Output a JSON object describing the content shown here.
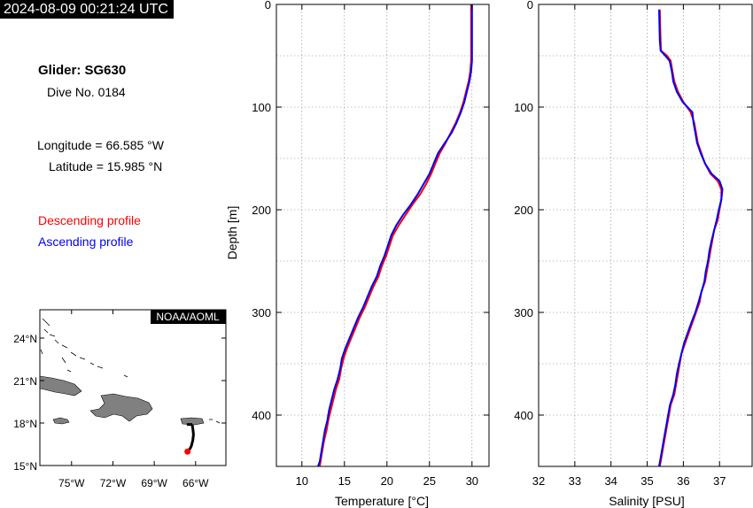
{
  "timestamp": "2024-08-09 00:21:24 UTC",
  "glider": {
    "name": "Glider: SG630",
    "dive": "Dive No. 0184"
  },
  "position": {
    "longitude": "Longitude = 66.585 °W",
    "latitude": "Latitude = 15.985 °N"
  },
  "legend": {
    "descending": "Descending profile",
    "ascending": "Ascending profile"
  },
  "colors": {
    "descending": "#ff0000",
    "ascending": "#0000ff",
    "land": "#808080",
    "track": "#000000",
    "grid": "#888888"
  },
  "map": {
    "credit": "NOAA/AOML",
    "lat_ticks": [
      {
        "v": 24,
        "label": "24°N"
      },
      {
        "v": 21,
        "label": "21°N"
      },
      {
        "v": 18,
        "label": "18°N"
      },
      {
        "v": 15,
        "label": "15°N"
      }
    ],
    "lon_ticks": [
      {
        "v": -75,
        "label": "75°W"
      },
      {
        "v": -72,
        "label": "72°W"
      },
      {
        "v": -69,
        "label": "69°W"
      },
      {
        "v": -66,
        "label": "66°W"
      }
    ],
    "lon_range": [
      -77.3,
      -63.8
    ],
    "lat_range": [
      15.0,
      26.0
    ],
    "track": [
      [
        -66.25,
        17.9
      ],
      [
        -66.2,
        17.6
      ],
      [
        -66.15,
        17.2
      ],
      [
        -66.2,
        16.8
      ],
      [
        -66.3,
        16.4
      ],
      [
        -66.4,
        16.2
      ],
      [
        -66.585,
        15.985
      ]
    ],
    "glider_position": [
      -66.585,
      15.985
    ]
  },
  "chart_data": [
    {
      "type": "line",
      "xlabel": "Temperature [°C]",
      "ylabel": "Depth [m]",
      "xlim": [
        7,
        32
      ],
      "ylim": [
        450,
        0
      ],
      "x_ticks": [
        10,
        15,
        20,
        25,
        30
      ],
      "y_ticks": [
        0,
        100,
        200,
        300,
        400
      ],
      "grid": true,
      "series": [
        {
          "role": "descending",
          "points": [
            [
              29.9,
              0
            ],
            [
              29.9,
              20
            ],
            [
              29.9,
              40
            ],
            [
              29.9,
              55
            ],
            [
              29.8,
              65
            ],
            [
              29.6,
              75
            ],
            [
              29.3,
              85
            ],
            [
              29.0,
              95
            ],
            [
              28.6,
              105
            ],
            [
              28.1,
              115
            ],
            [
              27.5,
              125
            ],
            [
              26.9,
              135
            ],
            [
              26.2,
              145
            ],
            [
              25.7,
              155
            ],
            [
              25.2,
              165
            ],
            [
              24.6,
              175
            ],
            [
              23.9,
              185
            ],
            [
              23.0,
              195
            ],
            [
              22.2,
              205
            ],
            [
              21.4,
              215
            ],
            [
              20.7,
              225
            ],
            [
              20.3,
              235
            ],
            [
              19.9,
              245
            ],
            [
              19.4,
              255
            ],
            [
              19.0,
              265
            ],
            [
              18.4,
              275
            ],
            [
              17.9,
              285
            ],
            [
              17.4,
              295
            ],
            [
              16.8,
              305
            ],
            [
              16.3,
              315
            ],
            [
              15.8,
              325
            ],
            [
              15.3,
              335
            ],
            [
              14.9,
              345
            ],
            [
              14.6,
              355
            ],
            [
              14.4,
              365
            ],
            [
              14.0,
              375
            ],
            [
              13.7,
              385
            ],
            [
              13.4,
              395
            ],
            [
              13.1,
              405
            ],
            [
              12.9,
              415
            ],
            [
              12.6,
              425
            ],
            [
              12.4,
              435
            ],
            [
              12.2,
              445
            ],
            [
              12.1,
              450
            ]
          ]
        },
        {
          "role": "ascending",
          "points": [
            [
              30.0,
              0
            ],
            [
              30.0,
              20
            ],
            [
              30.0,
              40
            ],
            [
              30.0,
              55
            ],
            [
              29.9,
              65
            ],
            [
              29.7,
              75
            ],
            [
              29.4,
              85
            ],
            [
              29.1,
              95
            ],
            [
              28.7,
              105
            ],
            [
              28.2,
              115
            ],
            [
              27.6,
              125
            ],
            [
              26.8,
              135
            ],
            [
              26.0,
              145
            ],
            [
              25.5,
              155
            ],
            [
              25.0,
              165
            ],
            [
              24.3,
              175
            ],
            [
              23.6,
              185
            ],
            [
              22.8,
              195
            ],
            [
              21.9,
              205
            ],
            [
              21.1,
              215
            ],
            [
              20.5,
              225
            ],
            [
              20.1,
              235
            ],
            [
              19.7,
              245
            ],
            [
              19.2,
              255
            ],
            [
              18.8,
              265
            ],
            [
              18.2,
              275
            ],
            [
              17.7,
              285
            ],
            [
              17.2,
              295
            ],
            [
              16.6,
              305
            ],
            [
              16.1,
              315
            ],
            [
              15.6,
              325
            ],
            [
              15.1,
              335
            ],
            [
              14.7,
              345
            ],
            [
              14.5,
              355
            ],
            [
              14.2,
              365
            ],
            [
              13.8,
              375
            ],
            [
              13.5,
              385
            ],
            [
              13.2,
              395
            ],
            [
              13.0,
              405
            ],
            [
              12.7,
              415
            ],
            [
              12.5,
              425
            ],
            [
              12.3,
              435
            ],
            [
              12.1,
              445
            ],
            [
              11.9,
              450
            ]
          ]
        }
      ]
    },
    {
      "type": "line",
      "xlabel": "Salinity [PSU]",
      "ylabel": "",
      "xlim": [
        32,
        37.9
      ],
      "ylim": [
        450,
        0
      ],
      "x_ticks": [
        32,
        33,
        34,
        35,
        36,
        37
      ],
      "y_ticks": [
        0,
        100,
        200,
        300,
        400
      ],
      "grid": true,
      "series": [
        {
          "role": "descending",
          "points": [
            [
              35.35,
              5
            ],
            [
              35.36,
              20
            ],
            [
              35.37,
              35
            ],
            [
              35.38,
              45
            ],
            [
              35.55,
              50
            ],
            [
              35.65,
              55
            ],
            [
              35.7,
              65
            ],
            [
              35.75,
              75
            ],
            [
              35.85,
              85
            ],
            [
              36.0,
              95
            ],
            [
              36.2,
              105
            ],
            [
              36.3,
              115
            ],
            [
              36.35,
              125
            ],
            [
              36.4,
              135
            ],
            [
              36.5,
              145
            ],
            [
              36.6,
              155
            ],
            [
              36.75,
              165
            ],
            [
              36.95,
              172
            ],
            [
              37.05,
              180
            ],
            [
              37.05,
              190
            ],
            [
              37.0,
              200
            ],
            [
              36.95,
              210
            ],
            [
              36.85,
              220
            ],
            [
              36.8,
              230
            ],
            [
              36.75,
              240
            ],
            [
              36.7,
              250
            ],
            [
              36.65,
              260
            ],
            [
              36.6,
              270
            ],
            [
              36.5,
              280
            ],
            [
              36.45,
              290
            ],
            [
              36.35,
              300
            ],
            [
              36.25,
              310
            ],
            [
              36.15,
              320
            ],
            [
              36.05,
              330
            ],
            [
              35.95,
              340
            ],
            [
              35.9,
              350
            ],
            [
              35.85,
              360
            ],
            [
              35.8,
              370
            ],
            [
              35.75,
              380
            ],
            [
              35.65,
              390
            ],
            [
              35.6,
              400
            ],
            [
              35.55,
              410
            ],
            [
              35.5,
              420
            ],
            [
              35.45,
              430
            ],
            [
              35.4,
              440
            ],
            [
              35.35,
              450
            ]
          ]
        },
        {
          "role": "ascending",
          "points": [
            [
              35.33,
              5
            ],
            [
              35.34,
              20
            ],
            [
              35.35,
              35
            ],
            [
              35.37,
              45
            ],
            [
              35.5,
              50
            ],
            [
              35.62,
              55
            ],
            [
              35.68,
              65
            ],
            [
              35.72,
              75
            ],
            [
              35.82,
              85
            ],
            [
              35.98,
              95
            ],
            [
              36.25,
              105
            ],
            [
              36.28,
              115
            ],
            [
              36.33,
              125
            ],
            [
              36.38,
              135
            ],
            [
              36.48,
              145
            ],
            [
              36.6,
              155
            ],
            [
              36.78,
              165
            ],
            [
              37.0,
              172
            ],
            [
              37.08,
              180
            ],
            [
              37.05,
              190
            ],
            [
              36.98,
              200
            ],
            [
              36.92,
              210
            ],
            [
              36.85,
              220
            ],
            [
              36.78,
              230
            ],
            [
              36.72,
              240
            ],
            [
              36.68,
              250
            ],
            [
              36.62,
              260
            ],
            [
              36.58,
              270
            ],
            [
              36.5,
              280
            ],
            [
              36.42,
              290
            ],
            [
              36.33,
              300
            ],
            [
              36.22,
              310
            ],
            [
              36.12,
              320
            ],
            [
              36.02,
              330
            ],
            [
              35.95,
              340
            ],
            [
              35.88,
              350
            ],
            [
              35.82,
              360
            ],
            [
              35.78,
              370
            ],
            [
              35.72,
              380
            ],
            [
              35.63,
              390
            ],
            [
              35.58,
              400
            ],
            [
              35.53,
              410
            ],
            [
              35.48,
              420
            ],
            [
              35.43,
              430
            ],
            [
              35.38,
              440
            ],
            [
              35.33,
              450
            ]
          ]
        }
      ]
    }
  ]
}
